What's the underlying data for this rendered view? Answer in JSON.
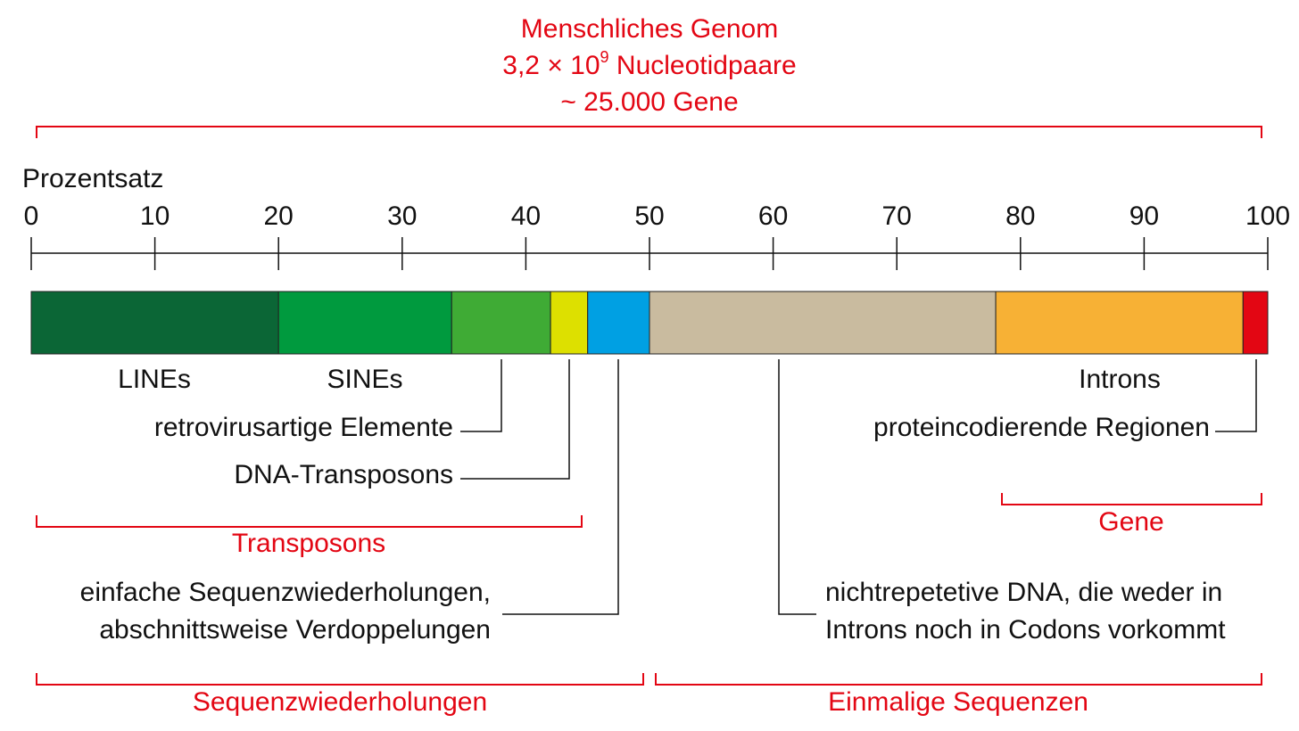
{
  "title": "Menschliches Genom",
  "subtitle": {
    "base": "3,2 × 10",
    "exponent": "9",
    "rest": " Nucleotidpaare"
  },
  "note": "~ 25.000 Gene",
  "axis": {
    "label": "Prozentsatz",
    "xlim": [
      0,
      100
    ],
    "xticks": [
      0,
      10,
      20,
      30,
      40,
      50,
      60,
      70,
      80,
      90,
      100
    ]
  },
  "segments": [
    {
      "label": [
        "LINEs"
      ],
      "value": 20,
      "color": "#0b6636"
    },
    {
      "label": [
        "SINEs"
      ],
      "value": 14,
      "color": "#009a3e"
    },
    {
      "label": [
        "retrovirusartige Elemente"
      ],
      "value": 8,
      "color": "#3fab35"
    },
    {
      "label": [
        "DNA-Transposons"
      ],
      "value": 3,
      "color": "#dde000"
    },
    {
      "label": [
        "einfache Sequenzwiederholungen,",
        "abschnittsweise Verdoppelungen"
      ],
      "value": 5,
      "color": "#00a0e3"
    },
    {
      "label": [
        "nichtrepetetive DNA, die weder in",
        "Introns noch in Codons vorkommt"
      ],
      "value": 28,
      "color": "#c9bb9f"
    },
    {
      "label": [
        "Introns"
      ],
      "value": 20,
      "color": "#f7b135"
    },
    {
      "label": [
        "proteincodierende Regionen"
      ],
      "value": 2,
      "color": "#e30613"
    }
  ],
  "groups": [
    "Transposons",
    "Gene",
    "Sequenzwiederholungen",
    "Einmalige Sequenzen"
  ]
}
